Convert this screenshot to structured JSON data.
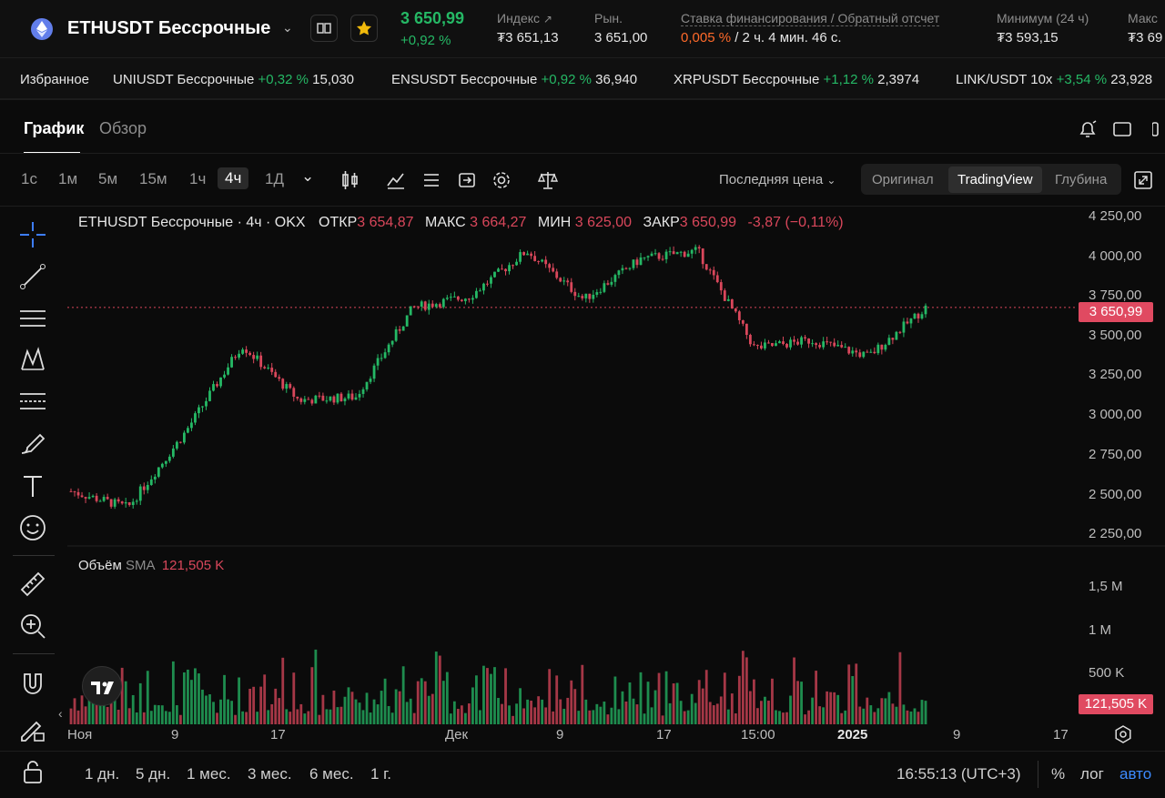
{
  "header": {
    "symbol": "ETHUSDT Бессрочные",
    "last_price": "3 650,99",
    "change_pct": "+0,92 %",
    "stats": [
      {
        "label": "Индекс",
        "value": "₮3 651,13"
      },
      {
        "label": "Рын.",
        "value": "3 651,00"
      },
      {
        "label": "Ставка финансирования / Обратный отсчет",
        "rate": "0,005 %",
        "countdown": "/ 2 ч. 4 мин. 46 с."
      },
      {
        "label": "Минимум (24 ч)",
        "value": "₮3 593,15"
      },
      {
        "label": "Макс",
        "value": "₮3 69"
      }
    ]
  },
  "favorites": {
    "label": "Избранное",
    "items": [
      {
        "name": "UNIUSDT Бессрочные",
        "change": "+0,32 %",
        "price": "15,030"
      },
      {
        "name": "ENSUSDT Бессрочные",
        "change": "+0,92 %",
        "price": "36,940"
      },
      {
        "name": "XRPUSDT Бессрочные",
        "change": "+1,12 %",
        "price": "2,3974"
      },
      {
        "name": "LINK/USDT 10x",
        "change": "+3,54 %",
        "price": "23,928"
      }
    ]
  },
  "tabs": {
    "chart": "График",
    "overview": "Обзор"
  },
  "timeframes": [
    "1с",
    "1м",
    "5м",
    "15м",
    "1ч",
    "4ч",
    "1Д"
  ],
  "active_timeframe": "4ч",
  "price_type": "Последняя цена",
  "views": {
    "original": "Оригинал",
    "tradingview": "TradingView",
    "depth": "Глубина"
  },
  "legend": {
    "title": "ETHUSDT Бессрочные · 4ч · OKX",
    "open_label": "ОТКР",
    "open": "3 654,87",
    "high_label": "МАКС",
    "high": "3 664,27",
    "low_label": "МИН",
    "low": "3 625,00",
    "close_label": "ЗАКР",
    "close": "3 650,99",
    "change": "-3,87 (−0,11%)"
  },
  "volume_legend": {
    "label": "Объём",
    "sma": "SMA",
    "value": "121,505 K"
  },
  "price_axis": [
    "4 250,00",
    "4 000,00",
    "3 750,00",
    "3 500,00",
    "3 250,00",
    "3 000,00",
    "2 750,00",
    "2 500,00",
    "2 250,00"
  ],
  "price_tag": "3 650,99",
  "volume_axis": [
    "1,5 M",
    "1 M",
    "500 K"
  ],
  "volume_tag": "121,505 K",
  "time_axis": [
    "Ноя",
    "9",
    "17",
    "Дек",
    "9",
    "17",
    "15:00",
    "2025",
    "9",
    "17"
  ],
  "ranges": [
    "1 дн.",
    "5 дн.",
    "1 мес.",
    "3 мес.",
    "6 мес.",
    "1 г."
  ],
  "clock": "16:55:13 (UTC+3)",
  "scale_opts": {
    "pct": "%",
    "log": "лог",
    "auto": "авто"
  },
  "colors": {
    "up": "#25b865",
    "down": "#d9475b",
    "accent": "#e04a61",
    "background": "#0b0b0b"
  },
  "chart_data": {
    "type": "candlestick",
    "symbol": "ETHUSDT",
    "interval": "4h",
    "y_range": [
      2200,
      4300
    ],
    "approx_close_path": [
      {
        "x": "Ноя",
        "close": 2520
      },
      {
        "x": "Ноя",
        "close": 2420
      },
      {
        "x": "9",
        "close": 2880
      },
      {
        "x": "9",
        "close": 3420
      },
      {
        "x": "17",
        "close": 3080
      },
      {
        "x": "17",
        "close": 3100
      },
      {
        "x": "Дек",
        "close": 3650
      },
      {
        "x": "Дек",
        "close": 3720
      },
      {
        "x": "9",
        "close": 4000
      },
      {
        "x": "9",
        "close": 3700
      },
      {
        "x": "17",
        "close": 3950
      },
      {
        "x": "17",
        "close": 4000
      },
      {
        "x": "15:00",
        "close": 3400
      },
      {
        "x": "15:00",
        "close": 3450
      },
      {
        "x": "2025",
        "close": 3350
      },
      {
        "x": "2025",
        "close": 3650
      }
    ],
    "last_price": 3650.99,
    "volume_y_range": [
      0,
      1800000
    ],
    "volume_sma": 121505
  }
}
